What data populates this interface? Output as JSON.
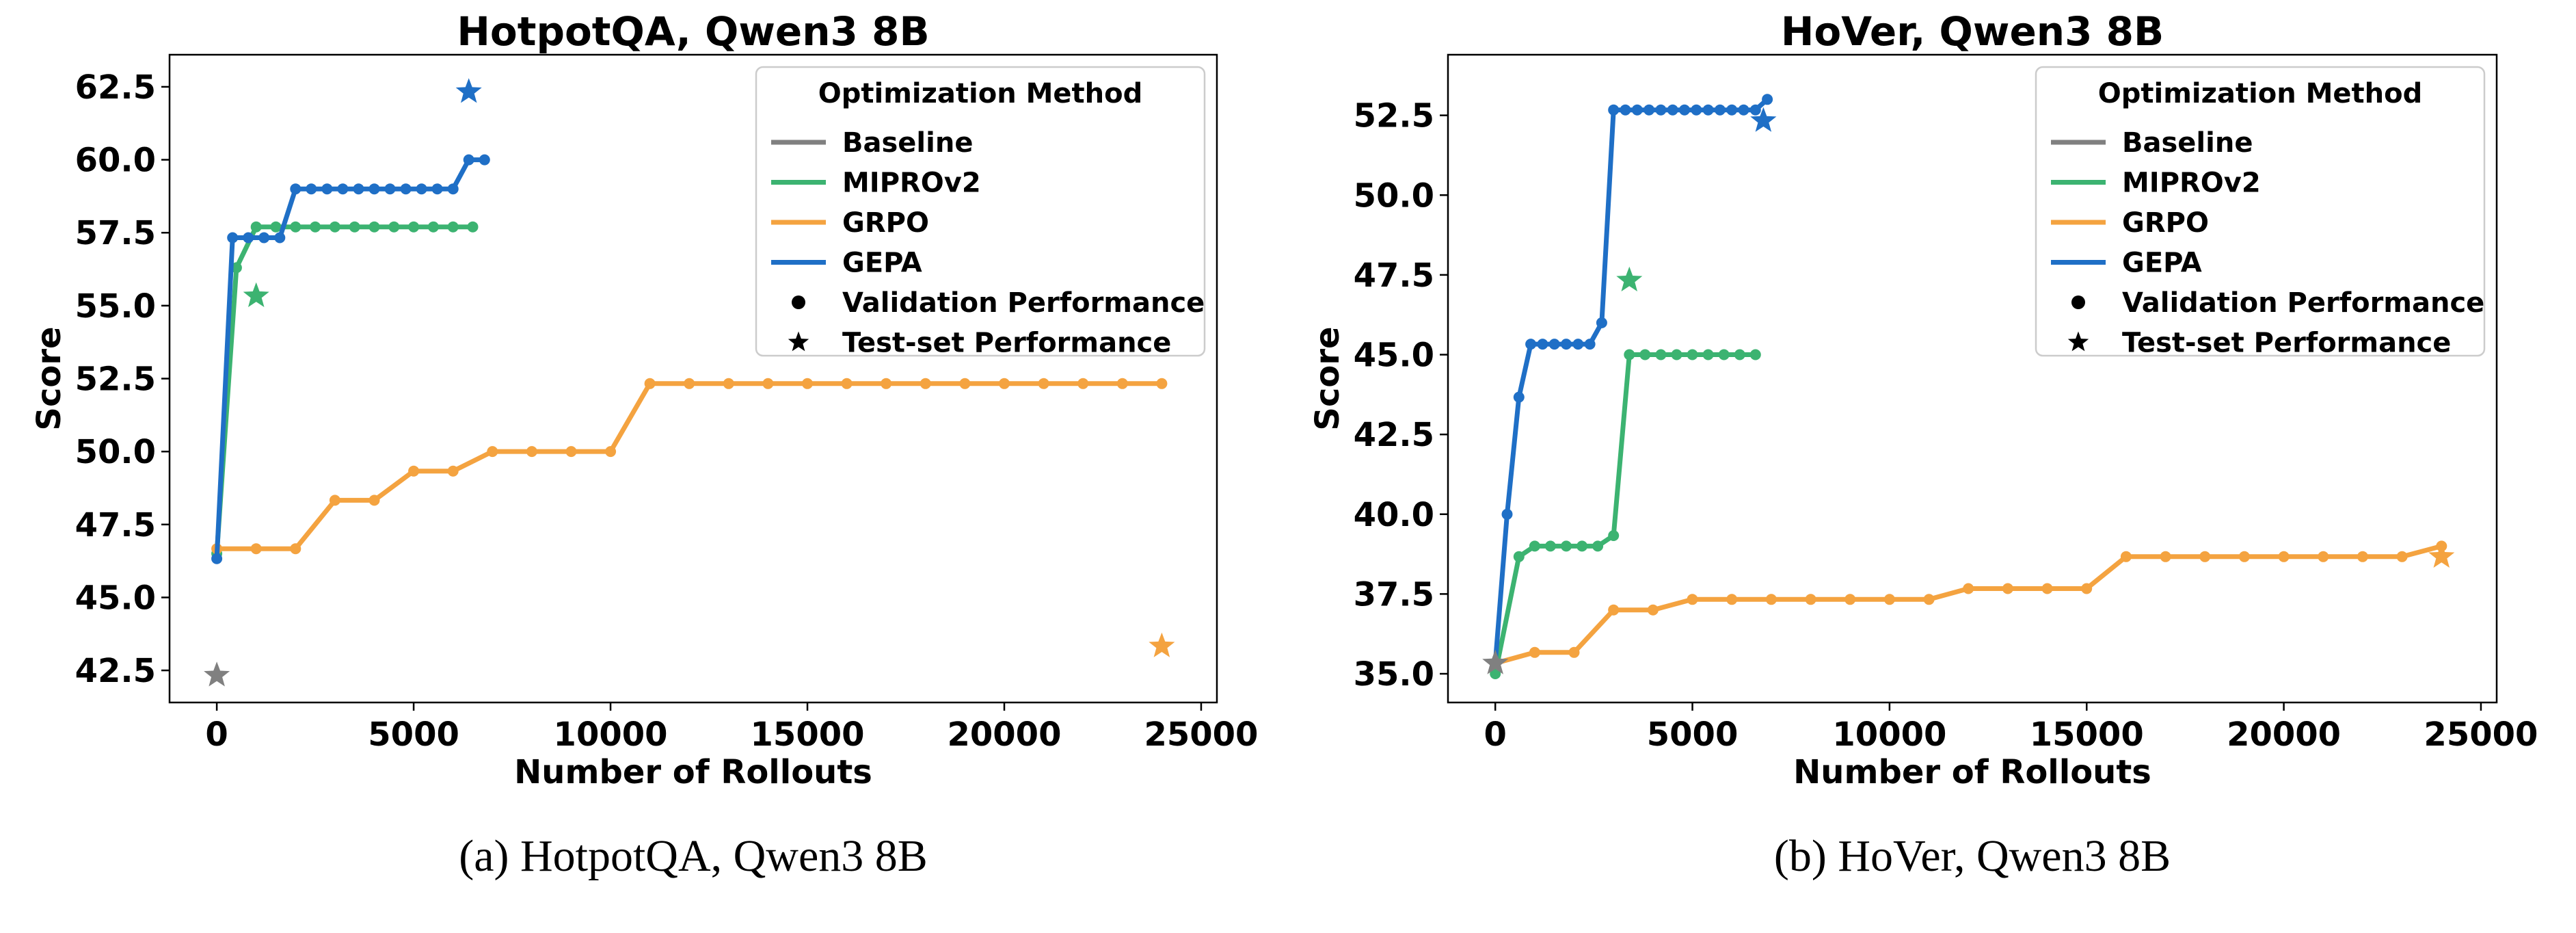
{
  "colors": {
    "baseline": "#808080",
    "mipro": "#3cb371",
    "grpo": "#f4a340",
    "gepa": "#1f6fc6"
  },
  "chart_data": [
    {
      "type": "line",
      "title": "HotpotQA, Qwen3 8B",
      "caption": "(a) HotpotQA, Qwen3 8B",
      "xlabel": "Number of Rollouts",
      "ylabel": "Score",
      "xlim": [
        -1200,
        25400
      ],
      "ylim": [
        41.4,
        63.6
      ],
      "xticks": [
        0,
        5000,
        10000,
        15000,
        20000,
        25000
      ],
      "yticks": [
        42.5,
        45.0,
        47.5,
        50.0,
        52.5,
        55.0,
        57.5,
        60.0,
        62.5
      ],
      "grid": false,
      "legend": {
        "title": "Optimization Method",
        "placement": "top-right",
        "entries": [
          "Baseline",
          "MIPROv2",
          "GRPO",
          "GEPA",
          "Validation Performance",
          "Test-set Performance"
        ]
      },
      "series": [
        {
          "name": "MIPROv2",
          "color": "#3cb371",
          "x": [
            0,
            500,
            1000,
            1500,
            2000,
            2500,
            3000,
            3500,
            4000,
            4500,
            5000,
            5500,
            6000,
            6500
          ],
          "y": [
            46.5,
            56.3,
            57.7,
            57.7,
            57.7,
            57.7,
            57.7,
            57.7,
            57.7,
            57.7,
            57.7,
            57.7,
            57.7,
            57.7
          ]
        },
        {
          "name": "GRPO",
          "color": "#f4a340",
          "x": [
            0,
            1000,
            2000,
            3000,
            4000,
            5000,
            6000,
            7000,
            8000,
            9000,
            10000,
            11000,
            12000,
            13000,
            14000,
            15000,
            16000,
            17000,
            18000,
            19000,
            20000,
            21000,
            22000,
            23000,
            24000
          ],
          "y": [
            46.67,
            46.67,
            46.67,
            48.33,
            48.33,
            49.33,
            49.33,
            50.0,
            50.0,
            50.0,
            50.0,
            52.33,
            52.33,
            52.33,
            52.33,
            52.33,
            52.33,
            52.33,
            52.33,
            52.33,
            52.33,
            52.33,
            52.33,
            52.33,
            52.33
          ]
        },
        {
          "name": "GEPA",
          "color": "#1f6fc6",
          "x": [
            0,
            400,
            800,
            1200,
            1600,
            2000,
            2400,
            2800,
            3200,
            3600,
            4000,
            4400,
            4800,
            5200,
            5600,
            6000,
            6400,
            6800
          ],
          "y": [
            46.33,
            57.33,
            57.33,
            57.33,
            57.33,
            59.0,
            59.0,
            59.0,
            59.0,
            59.0,
            59.0,
            59.0,
            59.0,
            59.0,
            59.0,
            59.0,
            60.0,
            60.0
          ]
        }
      ],
      "test_points": [
        {
          "name": "Baseline",
          "color": "#808080",
          "x": 0,
          "y": 42.33
        },
        {
          "name": "MIPROv2",
          "color": "#3cb371",
          "x": 1000,
          "y": 55.33
        },
        {
          "name": "GRPO",
          "color": "#f4a340",
          "x": 24000,
          "y": 43.33
        },
        {
          "name": "GEPA",
          "color": "#1f6fc6",
          "x": 6400,
          "y": 62.33
        }
      ]
    },
    {
      "type": "line",
      "title": "HoVer, Qwen3 8B",
      "caption": "(b) HoVer, Qwen3 8B",
      "xlabel": "Number of Rollouts",
      "ylabel": "Score",
      "xlim": [
        -1200,
        25400
      ],
      "ylim": [
        34.1,
        54.4
      ],
      "xticks": [
        0,
        5000,
        10000,
        15000,
        20000,
        25000
      ],
      "yticks": [
        35.0,
        37.5,
        40.0,
        42.5,
        45.0,
        47.5,
        50.0,
        52.5
      ],
      "grid": false,
      "legend": {
        "title": "Optimization Method",
        "placement": "top-right",
        "entries": [
          "Baseline",
          "MIPROv2",
          "GRPO",
          "GEPA",
          "Validation Performance",
          "Test-set Performance"
        ]
      },
      "series": [
        {
          "name": "MIPROv2",
          "color": "#3cb371",
          "x": [
            0,
            600,
            1000,
            1400,
            1800,
            2200,
            2600,
            3000,
            3400,
            3800,
            4200,
            4600,
            5000,
            5400,
            5800,
            6200,
            6600
          ],
          "y": [
            35.0,
            38.67,
            39.0,
            39.0,
            39.0,
            39.0,
            39.0,
            39.33,
            45.0,
            45.0,
            45.0,
            45.0,
            45.0,
            45.0,
            45.0,
            45.0,
            45.0
          ]
        },
        {
          "name": "GRPO",
          "color": "#f4a340",
          "x": [
            0,
            1000,
            2000,
            3000,
            4000,
            5000,
            6000,
            7000,
            8000,
            9000,
            10000,
            11000,
            12000,
            13000,
            14000,
            15000,
            16000,
            17000,
            18000,
            19000,
            20000,
            21000,
            22000,
            23000,
            24000
          ],
          "y": [
            35.33,
            35.67,
            35.67,
            37.0,
            37.0,
            37.33,
            37.33,
            37.33,
            37.33,
            37.33,
            37.33,
            37.33,
            37.67,
            37.67,
            37.67,
            37.67,
            38.67,
            38.67,
            38.67,
            38.67,
            38.67,
            38.67,
            38.67,
            38.67,
            39.0
          ]
        },
        {
          "name": "GEPA",
          "color": "#1f6fc6",
          "x": [
            0,
            300,
            600,
            900,
            1200,
            1500,
            1800,
            2100,
            2400,
            2700,
            3000,
            3300,
            3600,
            3900,
            4200,
            4500,
            4800,
            5100,
            5400,
            5700,
            6000,
            6300,
            6600,
            6900
          ],
          "y": [
            35.33,
            40.0,
            43.67,
            45.33,
            45.33,
            45.33,
            45.33,
            45.33,
            45.33,
            46.0,
            52.67,
            52.67,
            52.67,
            52.67,
            52.67,
            52.67,
            52.67,
            52.67,
            52.67,
            52.67,
            52.67,
            52.67,
            52.67,
            53.0
          ]
        }
      ],
      "test_points": [
        {
          "name": "Baseline",
          "color": "#808080",
          "x": 0,
          "y": 35.33
        },
        {
          "name": "MIPROv2",
          "color": "#3cb371",
          "x": 3400,
          "y": 47.33
        },
        {
          "name": "GRPO",
          "color": "#f4a340",
          "x": 24000,
          "y": 38.67
        },
        {
          "name": "GEPA",
          "color": "#1f6fc6",
          "x": 6800,
          "y": 52.33
        }
      ]
    }
  ]
}
